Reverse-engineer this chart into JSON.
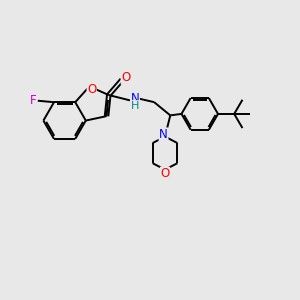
{
  "background_color": "#e8e8e8",
  "bond_color": "#000000",
  "bond_width": 1.4,
  "atom_colors": {
    "F": "#cc00cc",
    "O": "#ff0000",
    "N": "#0000ff",
    "H": "#008888",
    "C": "#000000"
  },
  "font_size": 8.5,
  "fig_width": 3.0,
  "fig_height": 3.0,
  "dpi": 100
}
